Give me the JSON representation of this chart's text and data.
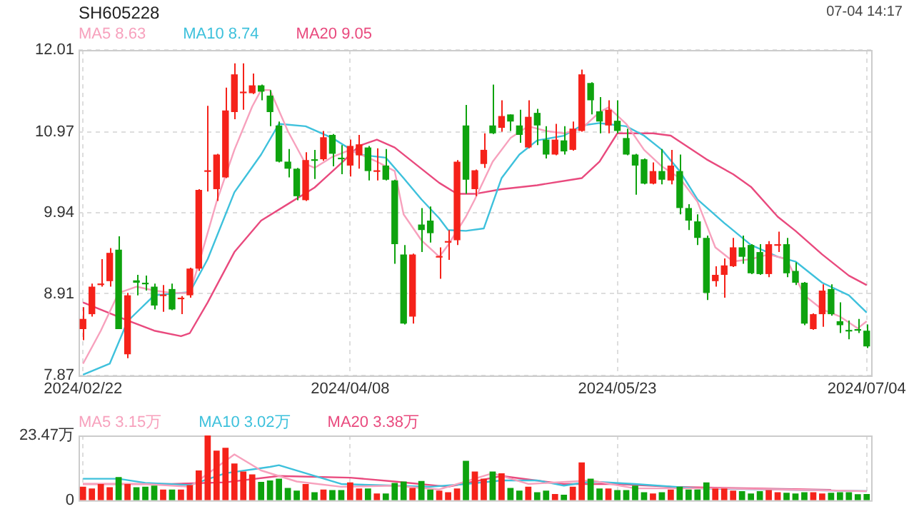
{
  "chart_data": [
    {
      "type": "candlestick",
      "title": "SH605228",
      "annotations": [
        "07-04 14:17"
      ],
      "categories": [
        "2024/02/22",
        null,
        null,
        null,
        null,
        null,
        null,
        null,
        null,
        null,
        null,
        null,
        null,
        null,
        null,
        null,
        null,
        null,
        null,
        null,
        null,
        null,
        null,
        null,
        null,
        null,
        null,
        null,
        null,
        null,
        "2024/04/08",
        null,
        null,
        null,
        null,
        null,
        null,
        null,
        null,
        null,
        null,
        null,
        null,
        null,
        null,
        null,
        null,
        null,
        null,
        null,
        null,
        null,
        null,
        null,
        null,
        null,
        null,
        null,
        null,
        null,
        "2024/05/23",
        null,
        null,
        null,
        null,
        null,
        null,
        null,
        null,
        null,
        null,
        null,
        null,
        null,
        null,
        null,
        null,
        null,
        null,
        null,
        null,
        null,
        null,
        null,
        null,
        null,
        null,
        null,
        "2024/07/04"
      ],
      "ohlc": [
        [
          8.46,
          8.74,
          8.32,
          8.59
        ],
        [
          8.65,
          9.04,
          8.62,
          9.0
        ],
        [
          9.02,
          9.35,
          9.0,
          9.04
        ],
        [
          9.07,
          9.49,
          9.0,
          9.43
        ],
        [
          9.47,
          9.64,
          8.46,
          8.46
        ],
        [
          8.14,
          8.92,
          8.09,
          8.89
        ],
        [
          9.08,
          9.15,
          8.89,
          9.05
        ],
        [
          9.05,
          9.14,
          8.95,
          9.03
        ],
        [
          9.0,
          9.04,
          8.71,
          8.76
        ],
        [
          8.88,
          9.02,
          8.68,
          8.9
        ],
        [
          8.97,
          9.04,
          8.7,
          8.71
        ],
        [
          8.84,
          8.88,
          8.65,
          8.86
        ],
        [
          8.89,
          9.24,
          8.86,
          9.23
        ],
        [
          9.23,
          10.24,
          9.2,
          10.23
        ],
        [
          10.46,
          11.3,
          10.21,
          10.48
        ],
        [
          10.24,
          10.69,
          10.09,
          10.68
        ],
        [
          10.39,
          11.53,
          10.38,
          11.24
        ],
        [
          11.22,
          11.84,
          11.13,
          11.7
        ],
        [
          11.46,
          11.84,
          11.25,
          11.48
        ],
        [
          11.46,
          11.71,
          11.45,
          11.56
        ],
        [
          11.56,
          11.57,
          11.37,
          11.48
        ],
        [
          11.43,
          11.5,
          11.04,
          11.22
        ],
        [
          11.05,
          11.1,
          10.58,
          10.59
        ],
        [
          10.59,
          10.75,
          10.39,
          10.5
        ],
        [
          10.5,
          10.51,
          10.1,
          10.15
        ],
        [
          10.1,
          10.71,
          10.09,
          10.61
        ],
        [
          10.62,
          10.74,
          10.37,
          10.6
        ],
        [
          10.62,
          10.98,
          10.6,
          10.9
        ],
        [
          10.93,
          10.94,
          10.53,
          10.69
        ],
        [
          10.64,
          10.8,
          10.43,
          10.62
        ],
        [
          10.54,
          10.87,
          10.4,
          10.79
        ],
        [
          10.67,
          10.93,
          10.5,
          10.81
        ],
        [
          10.77,
          10.79,
          10.35,
          10.47
        ],
        [
          10.46,
          10.76,
          10.35,
          10.48
        ],
        [
          10.54,
          10.75,
          10.35,
          10.36
        ],
        [
          10.35,
          10.36,
          9.29,
          9.54
        ],
        [
          9.41,
          9.53,
          8.52,
          8.53
        ],
        [
          8.62,
          9.42,
          8.53,
          9.41
        ],
        [
          9.79,
          10.0,
          9.44,
          9.72
        ],
        [
          9.84,
          10.02,
          9.56,
          9.68
        ],
        [
          9.37,
          9.5,
          9.1,
          9.39
        ],
        [
          9.56,
          9.72,
          9.34,
          9.58
        ],
        [
          9.59,
          10.61,
          9.53,
          10.59
        ],
        [
          11.05,
          11.31,
          10.18,
          10.36
        ],
        [
          10.24,
          10.49,
          10.15,
          10.48
        ],
        [
          10.56,
          10.95,
          10.51,
          10.74
        ],
        [
          11.05,
          11.57,
          10.94,
          10.95
        ],
        [
          11.02,
          11.37,
          10.97,
          11.17
        ],
        [
          11.19,
          11.19,
          10.98,
          11.1
        ],
        [
          11.05,
          11.25,
          10.83,
          10.93
        ],
        [
          10.77,
          11.37,
          10.76,
          11.16
        ],
        [
          11.21,
          11.26,
          10.8,
          11.05
        ],
        [
          10.87,
          11.04,
          10.63,
          10.68
        ],
        [
          10.68,
          11.07,
          10.67,
          10.87
        ],
        [
          10.86,
          11.04,
          10.68,
          10.72
        ],
        [
          10.74,
          11.1,
          10.73,
          11.01
        ],
        [
          10.98,
          11.76,
          10.97,
          11.7
        ],
        [
          11.59,
          11.6,
          11.19,
          11.37
        ],
        [
          11.23,
          11.41,
          10.95,
          11.1
        ],
        [
          11.05,
          11.37,
          10.95,
          11.25
        ],
        [
          11.11,
          11.37,
          10.95,
          10.98
        ],
        [
          10.89,
          11.01,
          10.67,
          10.68
        ],
        [
          10.68,
          10.69,
          10.17,
          10.54
        ],
        [
          10.62,
          10.63,
          10.3,
          10.31
        ],
        [
          10.31,
          10.58,
          10.3,
          10.47
        ],
        [
          10.47,
          10.75,
          10.3,
          10.36
        ],
        [
          10.35,
          10.74,
          10.3,
          10.54
        ],
        [
          10.47,
          10.68,
          9.92,
          10.0
        ],
        [
          10.0,
          10.05,
          9.72,
          9.84
        ],
        [
          9.83,
          9.92,
          9.53,
          9.62
        ],
        [
          9.62,
          9.65,
          8.83,
          8.92
        ],
        [
          9.07,
          9.26,
          9.0,
          9.15
        ],
        [
          9.15,
          9.36,
          8.86,
          9.27
        ],
        [
          9.26,
          9.62,
          9.25,
          9.5
        ],
        [
          9.5,
          9.65,
          9.29,
          9.38
        ],
        [
          9.53,
          9.54,
          9.16,
          9.17
        ],
        [
          9.44,
          9.54,
          9.15,
          9.16
        ],
        [
          9.16,
          9.58,
          9.12,
          9.54
        ],
        [
          9.52,
          9.7,
          9.44,
          9.54
        ],
        [
          9.54,
          9.62,
          9.12,
          9.17
        ],
        [
          9.2,
          9.31,
          9.02,
          9.05
        ],
        [
          9.05,
          9.06,
          8.51,
          8.53
        ],
        [
          8.46,
          8.66,
          8.45,
          8.65
        ],
        [
          8.65,
          9.03,
          8.49,
          8.95
        ],
        [
          8.97,
          9.03,
          8.63,
          8.65
        ],
        [
          8.56,
          8.8,
          8.41,
          8.51
        ],
        [
          8.45,
          8.57,
          8.33,
          8.43
        ],
        [
          8.46,
          8.59,
          8.41,
          8.44
        ],
        [
          8.44,
          8.52,
          8.22,
          8.24
        ]
      ],
      "colors": [
        "#f5221a",
        "#f5221a",
        "#f5221a",
        "#f5221a",
        "#0ea30e",
        "#f5221a",
        "#0ea30e",
        "#0ea30e",
        "#0ea30e",
        "#f5221a",
        "#0ea30e",
        "#f5221a",
        "#f5221a",
        "#f5221a",
        "#f5221a",
        "#f5221a",
        "#f5221a",
        "#f5221a",
        "#f5221a",
        "#f5221a",
        "#0ea30e",
        "#0ea30e",
        "#0ea30e",
        "#0ea30e",
        "#0ea30e",
        "#f5221a",
        "#0ea30e",
        "#f5221a",
        "#0ea30e",
        "#0ea30e",
        "#f5221a",
        "#f5221a",
        "#0ea30e",
        "#f5221a",
        "#0ea30e",
        "#0ea30e",
        "#0ea30e",
        "#f5221a",
        "#0ea30e",
        "#0ea30e",
        "#f5221a",
        "#f5221a",
        "#f5221a",
        "#0ea30e",
        "#f5221a",
        "#f5221a",
        "#0ea30e",
        "#f5221a",
        "#0ea30e",
        "#0ea30e",
        "#f5221a",
        "#0ea30e",
        "#0ea30e",
        "#f5221a",
        "#0ea30e",
        "#f5221a",
        "#f5221a",
        "#0ea30e",
        "#0ea30e",
        "#f5221a",
        "#0ea30e",
        "#0ea30e",
        "#0ea30e",
        "#0ea30e",
        "#f5221a",
        "#0ea30e",
        "#f5221a",
        "#0ea30e",
        "#0ea30e",
        "#0ea30e",
        "#0ea30e",
        "#f5221a",
        "#f5221a",
        "#f5221a",
        "#0ea30e",
        "#0ea30e",
        "#0ea30e",
        "#f5221a",
        "#f5221a",
        "#0ea30e",
        "#0ea30e",
        "#0ea30e",
        "#f5221a",
        "#f5221a",
        "#0ea30e",
        "#0ea30e",
        "#0ea30e",
        "#0ea30e",
        "#0ea30e"
      ],
      "series": [
        {
          "name": "MA5 8.63",
          "type": "line",
          "color": "#f7a1bd",
          "values": [
            8.02,
            null,
            8.44,
            null,
            8.92,
            null,
            9.0,
            null,
            8.95,
            null,
            8.92,
            null,
            8.92,
            9.29,
            null,
            10.08,
            null,
            10.74,
            null,
            11.29,
            11.5,
            11.5,
            null,
            10.98,
            null,
            10.56,
            10.51,
            null,
            10.65,
            null,
            10.74,
            null,
            null,
            10.59,
            null,
            10.47,
            9.92,
            null,
            9.59,
            null,
            9.38,
            9.53,
            null,
            9.89,
            10.11,
            null,
            10.59,
            null,
            10.89,
            null,
            11.04,
            null,
            10.98,
            null,
            10.95,
            null,
            11.01,
            null,
            11.22,
            11.28,
            null,
            11.07,
            null,
            10.74,
            null,
            10.53,
            null,
            10.38,
            null,
            10.08,
            null,
            9.5,
            null,
            9.32,
            null,
            9.35,
            null,
            9.41,
            null,
            9.35,
            null,
            8.89,
            null,
            8.71,
            null,
            8.62,
            null,
            8.47,
            8.56
          ]
        },
        {
          "name": "MA10 8.74",
          "type": "line",
          "color": "#3ec1dc",
          "values": [
            7.88,
            null,
            null,
            8.02,
            null,
            8.56,
            null,
            null,
            8.89,
            null,
            null,
            null,
            8.93,
            null,
            9.35,
            null,
            null,
            10.2,
            null,
            null,
            10.68,
            null,
            11.07,
            null,
            null,
            11.04,
            null,
            null,
            10.89,
            null,
            null,
            10.68,
            null,
            null,
            10.64,
            null,
            10.38,
            null,
            10.11,
            null,
            9.87,
            9.72,
            null,
            9.71,
            null,
            9.74,
            null,
            10.38,
            null,
            10.68,
            null,
            10.86,
            null,
            null,
            10.92,
            null,
            11.05,
            null,
            11.08,
            null,
            null,
            11.04,
            null,
            10.92,
            null,
            10.74,
            null,
            10.47,
            null,
            10.11,
            null,
            null,
            9.81,
            null,
            null,
            9.53,
            null,
            null,
            9.38,
            null,
            9.32,
            null,
            null,
            9.05,
            null,
            null,
            8.89,
            null,
            8.67
          ]
        },
        {
          "name": "MA20 9.05",
          "type": "line",
          "color": "#e94a7e",
          "values": [
            8.8,
            null,
            null,
            null,
            null,
            8.57,
            null,
            null,
            8.44,
            null,
            null,
            8.37,
            8.41,
            null,
            8.8,
            null,
            null,
            9.44,
            null,
            null,
            9.84,
            null,
            null,
            10.05,
            null,
            null,
            10.26,
            null,
            null,
            10.57,
            null,
            10.79,
            null,
            10.87,
            null,
            10.77,
            null,
            null,
            10.5,
            null,
            10.32,
            null,
            10.18,
            null,
            10.18,
            null,
            null,
            10.24,
            null,
            null,
            null,
            10.29,
            null,
            null,
            null,
            null,
            10.38,
            null,
            10.59,
            null,
            10.95,
            null,
            10.95,
            null,
            10.95,
            null,
            10.92,
            null,
            10.77,
            null,
            10.62,
            null,
            null,
            10.43,
            null,
            10.27,
            null,
            null,
            9.89,
            null,
            9.71,
            null,
            null,
            9.41,
            null,
            null,
            9.14,
            null,
            9.02
          ]
        }
      ],
      "ylim": [
        7.87,
        12.01
      ],
      "yticks": [
        7.87,
        8.91,
        9.94,
        10.97,
        12.01
      ],
      "grid": true,
      "legend": "top left",
      "marker": "none",
      "line_style": "solid"
    },
    {
      "type": "bar",
      "categories": [
        "2024/02/22",
        null,
        null,
        null,
        null,
        null,
        null,
        null,
        null,
        null,
        null,
        null,
        null,
        null,
        null,
        null,
        null,
        null,
        null,
        null,
        null,
        null,
        null,
        null,
        null,
        null,
        null,
        null,
        null,
        null,
        "2024/04/08",
        null,
        null,
        null,
        null,
        null,
        null,
        null,
        null,
        null,
        null,
        null,
        null,
        null,
        null,
        null,
        null,
        null,
        null,
        null,
        null,
        null,
        null,
        null,
        null,
        null,
        null,
        null,
        null,
        null,
        "2024/05/23",
        null,
        null,
        null,
        null,
        null,
        null,
        null,
        null,
        null,
        null,
        null,
        null,
        null,
        null,
        null,
        null,
        null,
        null,
        null,
        null,
        null,
        null,
        null,
        null,
        null,
        null,
        null,
        "2024/07/04"
      ],
      "series": [
        {
          "type": "bar",
          "colors": [
            "#f5221a",
            "#f5221a",
            "#f5221a",
            "#f5221a",
            "#0ea30e",
            "#f5221a",
            "#0ea30e",
            "#0ea30e",
            "#0ea30e",
            "#f5221a",
            "#0ea30e",
            "#f5221a",
            "#f5221a",
            "#f5221a",
            "#f5221a",
            "#f5221a",
            "#f5221a",
            "#f5221a",
            "#f5221a",
            "#f5221a",
            "#0ea30e",
            "#0ea30e",
            "#0ea30e",
            "#0ea30e",
            "#0ea30e",
            "#f5221a",
            "#0ea30e",
            "#f5221a",
            "#0ea30e",
            "#0ea30e",
            "#f5221a",
            "#f5221a",
            "#0ea30e",
            "#f5221a",
            "#0ea30e",
            "#0ea30e",
            "#0ea30e",
            "#f5221a",
            "#0ea30e",
            "#0ea30e",
            "#f5221a",
            "#f5221a",
            "#f5221a",
            "#0ea30e",
            "#f5221a",
            "#f5221a",
            "#0ea30e",
            "#f5221a",
            "#0ea30e",
            "#0ea30e",
            "#f5221a",
            "#0ea30e",
            "#0ea30e",
            "#f5221a",
            "#0ea30e",
            "#f5221a",
            "#f5221a",
            "#0ea30e",
            "#0ea30e",
            "#f5221a",
            "#0ea30e",
            "#0ea30e",
            "#0ea30e",
            "#0ea30e",
            "#f5221a",
            "#0ea30e",
            "#f5221a",
            "#0ea30e",
            "#0ea30e",
            "#0ea30e",
            "#0ea30e",
            "#f5221a",
            "#f5221a",
            "#f5221a",
            "#0ea30e",
            "#0ea30e",
            "#0ea30e",
            "#f5221a",
            "#f5221a",
            "#0ea30e",
            "#0ea30e",
            "#0ea30e",
            "#f5221a",
            "#f5221a",
            "#0ea30e",
            "#0ea30e",
            "#0ea30e",
            "#0ea30e",
            "#0ea30e"
          ],
          "values": [
            4.9,
            4.3,
            5.9,
            4.7,
            8.4,
            5.9,
            4.7,
            4.9,
            5.3,
            3.9,
            3.9,
            3.9,
            5.5,
            10.8,
            23.47,
            18.0,
            19.0,
            13.3,
            10.4,
            9.4,
            6.7,
            7.2,
            7.8,
            4.5,
            3.5,
            5.9,
            2.9,
            3.9,
            3.7,
            3.7,
            6.5,
            4.3,
            4.3,
            2.5,
            2.5,
            6.3,
            6.8,
            4.5,
            7.0,
            3.9,
            3.5,
            2.9,
            4.3,
            14.3,
            10.4,
            7.8,
            10.4,
            9.8,
            4.5,
            3.5,
            4.9,
            2.9,
            3.5,
            2.3,
            2.0,
            4.9,
            13.7,
            7.8,
            4.3,
            4.3,
            3.7,
            3.7,
            5.3,
            2.9,
            2.5,
            2.9,
            3.9,
            4.9,
            3.9,
            3.9,
            6.5,
            4.3,
            4.3,
            3.5,
            3.3,
            2.5,
            3.3,
            3.7,
            2.9,
            2.7,
            2.5,
            2.9,
            2.9,
            2.5,
            2.7,
            2.9,
            2.9,
            2.2,
            2.3
          ]
        },
        {
          "name": "MA5 3.15万",
          "type": "line",
          "color": "#f7a1bd",
          "values": [
            5.9,
            null,
            null,
            null,
            null,
            null,
            null,
            5.9,
            null,
            null,
            null,
            null,
            4.9,
            null,
            null,
            null,
            null,
            16.6,
            null,
            null,
            10.8,
            null,
            null,
            null,
            6.8,
            null,
            null,
            null,
            null,
            4.9,
            null,
            null,
            null,
            null,
            null,
            5.3,
            null,
            null,
            null,
            null,
            3.9,
            null,
            null,
            null,
            null,
            null,
            9.8,
            null,
            null,
            null,
            5.9,
            null,
            null,
            null,
            null,
            null,
            null,
            7.2,
            null,
            null,
            null,
            null,
            4.3,
            null,
            null,
            null,
            null,
            null,
            null,
            null,
            null,
            null,
            4.3,
            null,
            null,
            null,
            null,
            null,
            null,
            null,
            null,
            null,
            null,
            null,
            null,
            null,
            null,
            null,
            3.3
          ]
        },
        {
          "name": "MA10 3.02万",
          "type": "line",
          "color": "#3ec1dc",
          "values": [
            7.8,
            null,
            null,
            null,
            7.8,
            null,
            null,
            6.3,
            null,
            null,
            null,
            null,
            5.5,
            null,
            null,
            null,
            9.8,
            null,
            null,
            null,
            null,
            12.1,
            12.7,
            null,
            null,
            9.8,
            null,
            null,
            null,
            5.9,
            null,
            null,
            null,
            null,
            null,
            5.3,
            null,
            null,
            null,
            4.9,
            null,
            null,
            null,
            5.9,
            null,
            null,
            null,
            7.2,
            null,
            null,
            null,
            7.2,
            null,
            null,
            5.3,
            null,
            null,
            6.8,
            null,
            null,
            null,
            null,
            5.9,
            null,
            null,
            null,
            null,
            null,
            null,
            4.3,
            null,
            null,
            null,
            null,
            null,
            null,
            null,
            null,
            3.9,
            null,
            null,
            null,
            null,
            null,
            null,
            null,
            null,
            null,
            3.3
          ]
        },
        {
          "name": "MA20 3.38万",
          "type": "line",
          "color": "#e94a7e",
          "values": [
            5.9,
            null,
            null,
            null,
            null,
            null,
            null,
            null,
            null,
            null,
            5.9,
            null,
            null,
            null,
            null,
            null,
            6.5,
            null,
            null,
            null,
            null,
            null,
            8.8,
            null,
            null,
            null,
            null,
            null,
            null,
            null,
            8.2,
            null,
            null,
            null,
            null,
            6.8,
            null,
            null,
            null,
            null,
            null,
            4.9,
            null,
            null,
            null,
            null,
            null,
            8.8,
            null,
            null,
            null,
            null,
            null,
            null,
            5.9,
            null,
            null,
            null,
            null,
            null,
            5.9,
            null,
            null,
            null,
            null,
            null,
            4.9,
            null,
            null,
            null,
            null,
            null,
            4.5,
            null,
            null,
            null,
            null,
            null,
            null,
            null,
            null,
            null,
            null,
            null,
            3.8,
            null,
            null,
            null,
            null
          ]
        }
      ],
      "ylim": [
        0,
        23.47
      ],
      "yticks": [
        0,
        {
          "value": 23.47,
          "label": "23.47万"
        }
      ],
      "tick_labels": "y",
      "grid": "x",
      "legend": "top left",
      "marker": "none",
      "line_style": "solid"
    }
  ]
}
